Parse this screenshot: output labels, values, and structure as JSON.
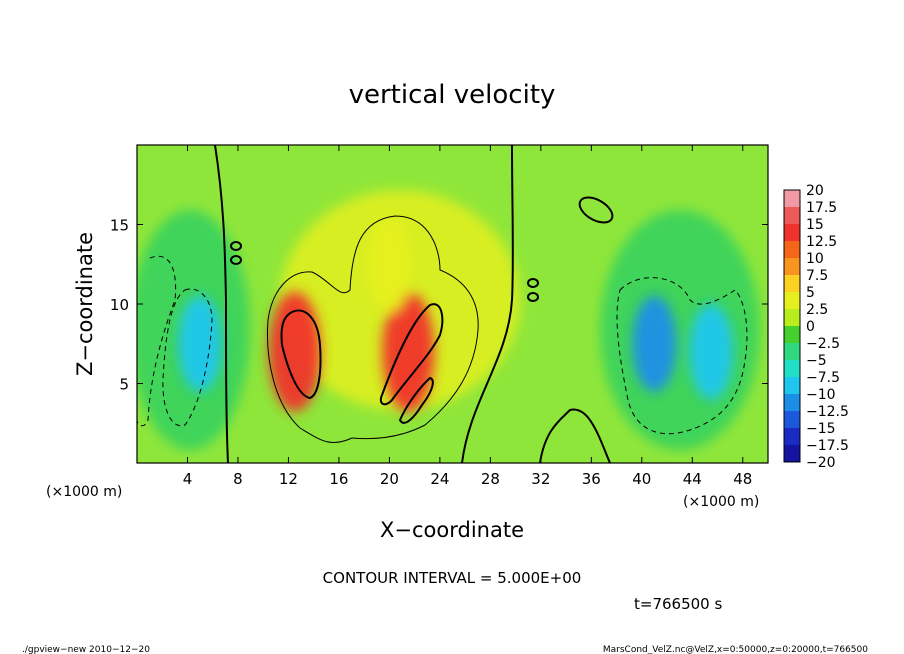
{
  "chart_data": {
    "type": "heatmap",
    "title": "vertical velocity",
    "xlabel": "X−coordinate",
    "ylabel": "Z−coordinate",
    "x_unit_left": "(×1000 m)",
    "x_unit_right": "(×1000 m)",
    "xlim": [
      0,
      50
    ],
    "ylim": [
      0,
      20
    ],
    "x_ticks": [
      4,
      8,
      12,
      16,
      20,
      24,
      28,
      32,
      36,
      40,
      44,
      48
    ],
    "y_ticks": [
      5,
      10,
      15
    ],
    "grid": false,
    "colorbar": {
      "labels": [
        "20",
        "17.5",
        "15",
        "12.5",
        "10",
        "7.5",
        "5",
        "2.5",
        "0",
        "−2.5",
        "−5",
        "−7.5",
        "−10",
        "−12.5",
        "−15",
        "−17.5",
        "−20"
      ],
      "colors": [
        "#f19aa6",
        "#ee5a5a",
        "#f0322c",
        "#f56618",
        "#fa9420",
        "#fcd123",
        "#e6f020",
        "#b8ee1e",
        "#46d02e",
        "#2fd87e",
        "#22e0c8",
        "#1fc6ee",
        "#1c8ee8",
        "#1c58dc",
        "#1a2bc4",
        "#1414a0",
        "#6414a6"
      ]
    },
    "cells": [
      {
        "x": 5.0,
        "y": 7.5,
        "w": -8.0
      },
      {
        "x": 12.5,
        "y": 7.0,
        "w": 15.0
      },
      {
        "x": 21.5,
        "y": 7.0,
        "w": 14.0
      },
      {
        "x": 20.0,
        "y": 12.5,
        "w": 6.0
      },
      {
        "x": 41.0,
        "y": 7.5,
        "w": -9.0
      },
      {
        "x": 45.5,
        "y": 7.0,
        "w": -7.0
      }
    ],
    "contour_interval": "CONTOUR INTERVAL = 5.000E+00",
    "time_label": "t=766500 s"
  },
  "footer": {
    "left": "./gpview−new   2010−12−20",
    "right": "MarsCond_VelZ.nc@VelZ,x=0:50000,z=0:20000,t=766500"
  }
}
